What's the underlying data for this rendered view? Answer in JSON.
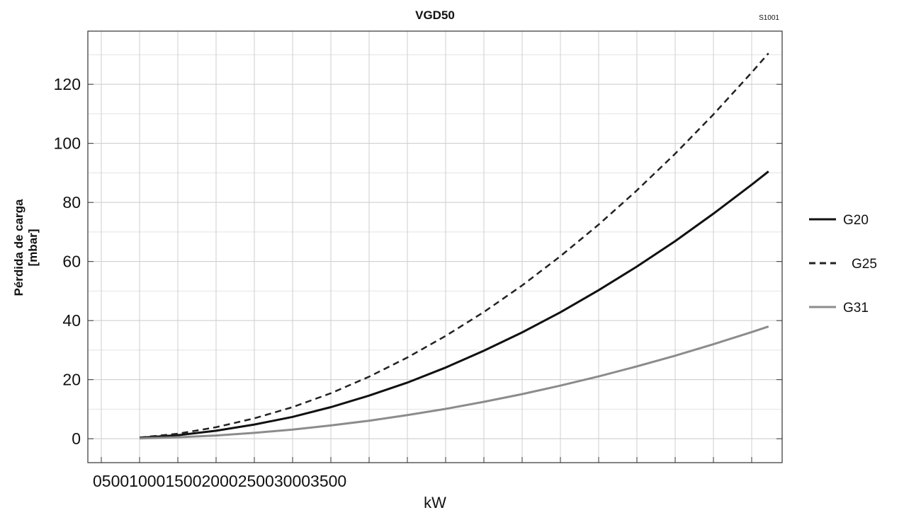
{
  "chart_data": {
    "type": "line",
    "title": "VGD50",
    "code": "S1001",
    "y_label": [
      "Pérdida de carga",
      "[mbar]"
    ],
    "x_label": "kW",
    "x": [
      500,
      1000,
      1500,
      2000,
      2500,
      3000,
      3500,
      4000,
      4500,
      5000,
      5500,
      6000,
      6500,
      7000,
      7500,
      8000,
      8500,
      8720
    ],
    "series": [
      {
        "name": "G20",
        "color": "#111111",
        "dash": false,
        "values": [
          0.3,
          1.2,
          2.7,
          4.8,
          7.4,
          10.7,
          14.6,
          19.0,
          24.1,
          29.8,
          36.0,
          42.8,
          50.3,
          58.3,
          66.9,
          76.2,
          86.0,
          90.5
        ]
      },
      {
        "name": "G25",
        "color": "#222222",
        "dash": true,
        "values": [
          0.4,
          1.7,
          3.9,
          6.9,
          10.7,
          15.4,
          21.0,
          27.5,
          34.8,
          42.9,
          51.9,
          61.8,
          72.5,
          84.1,
          96.5,
          109.8,
          124.0,
          130.5
        ]
      },
      {
        "name": "G31",
        "color": "#8c8c8c",
        "dash": false,
        "values": [
          0.1,
          0.5,
          1.1,
          2.0,
          3.1,
          4.5,
          6.1,
          8.0,
          10.1,
          12.5,
          15.1,
          18.0,
          21.1,
          24.5,
          28.1,
          32.0,
          36.1,
          38.0
        ]
      }
    ],
    "xlim": [
      -176,
      8898
    ],
    "xticks": [
      0,
      500,
      1000,
      1500,
      2000,
      2500,
      3000,
      3500
    ],
    "ylim": [
      -8.1,
      138
    ],
    "yticks": [
      0,
      20,
      40,
      60,
      80,
      100,
      120
    ],
    "grid": true
  }
}
